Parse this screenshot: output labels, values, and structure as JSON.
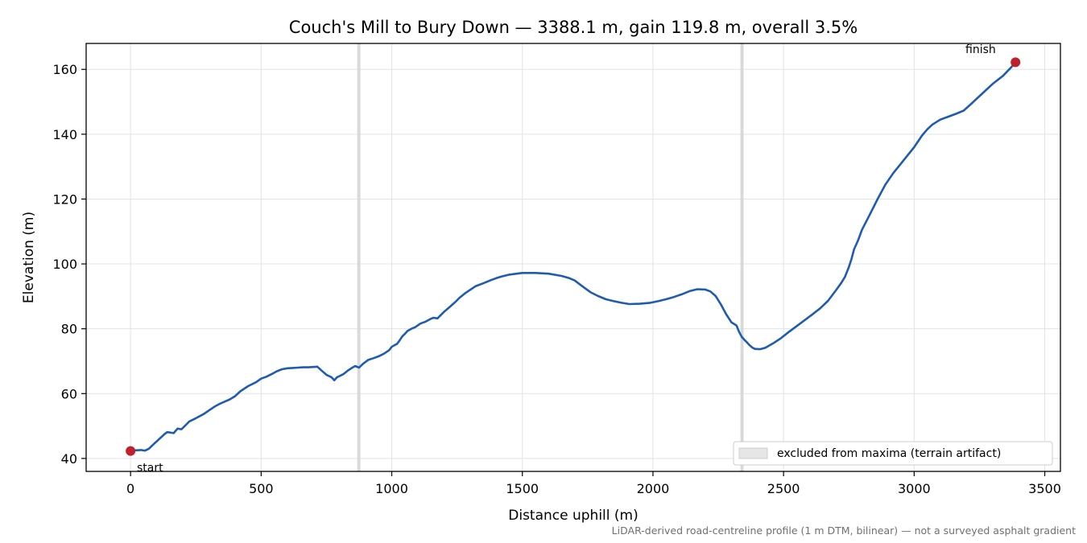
{
  "chart_data": {
    "type": "line",
    "title": "Couch's Mill to Bury Down — 3388.1 m, gain 119.8 m, overall 3.5%",
    "xlabel": "Distance uphill (m)",
    "ylabel": "Elevation (m)",
    "xlim": [
      -170,
      3560
    ],
    "ylim": [
      36,
      168
    ],
    "xticks": [
      0,
      500,
      1000,
      1500,
      2000,
      2500,
      3000,
      3500
    ],
    "yticks": [
      40,
      60,
      80,
      100,
      120,
      140,
      160
    ],
    "grid": true,
    "line_color": "#1f5bb0",
    "marker_color": "#c0202b",
    "excluded_color": "#d5d5d5",
    "series": [
      {
        "x": [
          0,
          20,
          40,
          55,
          70,
          90,
          110,
          130,
          140,
          150,
          165,
          180,
          195,
          210,
          225,
          250,
          280,
          300,
          320,
          340,
          360,
          380,
          400,
          420,
          450,
          480,
          500,
          520,
          540,
          560,
          580,
          600,
          620,
          640,
          660,
          680,
          700,
          715,
          730,
          750,
          760,
          770,
          780,
          790,
          800,
          815,
          830,
          845,
          860,
          875,
          890,
          910,
          930,
          950,
          970,
          990,
          1000,
          1010,
          1020,
          1030,
          1040,
          1050,
          1060,
          1075,
          1090,
          1110,
          1130,
          1150,
          1160,
          1175,
          1190,
          1200,
          1220,
          1240,
          1260,
          1280,
          1300,
          1320,
          1350,
          1380,
          1400,
          1420,
          1450,
          1500,
          1550,
          1600,
          1650,
          1680,
          1700,
          1730,
          1760,
          1790,
          1820,
          1850,
          1880,
          1910,
          1950,
          1990,
          2020,
          2050,
          2080,
          2110,
          2140,
          2170,
          2200,
          2220,
          2240,
          2260,
          2280,
          2300,
          2320,
          2330,
          2340,
          2350,
          2360,
          2370,
          2380,
          2390,
          2410,
          2430,
          2460,
          2490,
          2520,
          2550,
          2580,
          2610,
          2640,
          2670,
          2700,
          2720,
          2735,
          2750,
          2760,
          2770,
          2785,
          2800,
          2830,
          2860,
          2890,
          2920,
          2960,
          3000,
          3030,
          3050,
          3070,
          3100,
          3130,
          3160,
          3190,
          3220,
          3260,
          3300,
          3340,
          3370,
          3388
        ],
        "y": [
          42.3,
          42.5,
          42.6,
          42.4,
          43.0,
          44.5,
          46.0,
          47.5,
          48.1,
          48.0,
          47.8,
          49.2,
          49.0,
          50.2,
          51.4,
          52.4,
          53.7,
          54.8,
          55.9,
          56.8,
          57.5,
          58.2,
          59.2,
          60.7,
          62.3,
          63.5,
          64.6,
          65.2,
          66.0,
          66.9,
          67.5,
          67.8,
          67.9,
          68.0,
          68.1,
          68.1,
          68.2,
          68.3,
          67.2,
          65.8,
          65.4,
          65.0,
          64.1,
          65.0,
          65.4,
          66.0,
          67.0,
          67.8,
          68.5,
          68.0,
          69.2,
          70.4,
          70.9,
          71.5,
          72.3,
          73.4,
          74.4,
          74.9,
          75.3,
          76.4,
          77.6,
          78.4,
          79.3,
          80.0,
          80.5,
          81.6,
          82.2,
          83.1,
          83.4,
          83.2,
          84.4,
          85.2,
          86.6,
          88.0,
          89.6,
          90.9,
          92.0,
          93.1,
          94.0,
          95.0,
          95.6,
          96.1,
          96.7,
          97.2,
          97.2,
          97.0,
          96.3,
          95.6,
          94.9,
          93.1,
          91.3,
          90.1,
          89.1,
          88.5,
          88.0,
          87.6,
          87.7,
          88.0,
          88.5,
          89.1,
          89.8,
          90.6,
          91.6,
          92.2,
          92.1,
          91.5,
          90.1,
          87.5,
          84.5,
          82.0,
          81.0,
          79.0,
          77.5,
          76.6,
          75.8,
          74.9,
          74.2,
          73.8,
          73.7,
          74.1,
          75.5,
          77.1,
          79.0,
          80.8,
          82.6,
          84.4,
          86.3,
          88.6,
          91.8,
          94.0,
          96.0,
          99.0,
          101.5,
          104.5,
          107.2,
          110.5,
          115.2,
          120.0,
          124.5,
          128.0,
          132.0,
          136.0,
          139.6,
          141.5,
          143.0,
          144.5,
          145.4,
          146.3,
          147.3,
          149.5,
          152.5,
          155.5,
          158.0,
          160.5,
          162.2
        ]
      }
    ],
    "start_label": "start",
    "finish_label": "finish",
    "excluded_bands": [
      [
        868,
        880
      ],
      [
        2335,
        2347
      ]
    ],
    "legend": {
      "label": "excluded from maxima (terrain artifact)",
      "placement": "lower-right"
    },
    "footnote": "LiDAR-derived road-centreline profile (1 m DTM, bilinear) — not a surveyed asphalt gradient"
  }
}
